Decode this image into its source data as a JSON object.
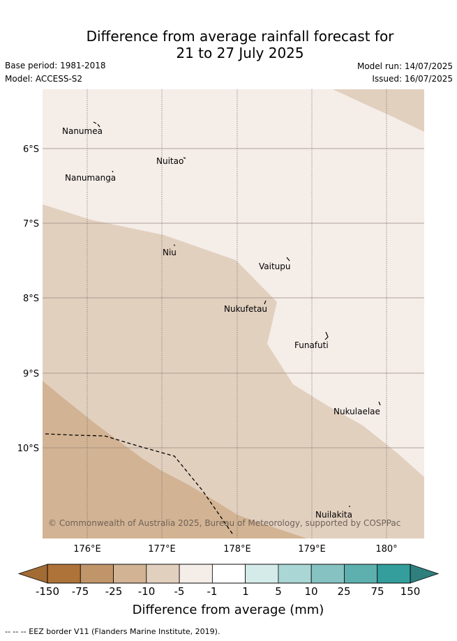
{
  "title_line1": "Difference from average rainfall forecast for",
  "title_line2": "21 to 27 July 2025",
  "base_period": "Base period: 1981-2018",
  "model": "Model: ACCESS-S2",
  "model_run": "Model run: 14/07/2025",
  "issued": "Issued: 16/07/2025",
  "map": {
    "lat_labels": [
      "6°S",
      "7°S",
      "8°S",
      "9°S",
      "10°S"
    ],
    "lon_labels": [
      "176°E",
      "177°E",
      "178°E",
      "179°E",
      "180°"
    ],
    "lon_range": [
      175.4,
      180.5
    ],
    "lat_range": [
      -11.2,
      -5.2
    ],
    "islands": [
      {
        "name": "Nanumea",
        "lon": 176.13,
        "lat": -5.68
      },
      {
        "name": "Nuitao",
        "lon": 177.3,
        "lat": -6.12
      },
      {
        "name": "Nanumanga",
        "lon": 176.33,
        "lat": -6.3
      },
      {
        "name": "Niu",
        "lon": 177.16,
        "lat": -7.3
      },
      {
        "name": "Vaitupu",
        "lon": 178.68,
        "lat": -7.48
      },
      {
        "name": "Nukufetau",
        "lon": 178.38,
        "lat": -8.03
      },
      {
        "name": "Funafuti",
        "lon": 179.2,
        "lat": -8.52
      },
      {
        "name": "Nukulaelae",
        "lon": 179.85,
        "lat": -9.38
      },
      {
        "name": "Nuilakita",
        "lon": 179.5,
        "lat": -10.78
      }
    ],
    "copyright": "© Commonwealth of Australia 2025, Bureau of Meteorology, supported by COSPPac"
  },
  "colorbar": {
    "ticks": [
      "-150",
      "-75",
      "-25",
      "-10",
      "-5",
      "-1",
      "1",
      "5",
      "10",
      "25",
      "75",
      "150"
    ],
    "colors": [
      "#ad7339",
      "#c1956a",
      "#d2b393",
      "#e2d0bf",
      "#f5ede8",
      "#ffffff",
      "#d5ebea",
      "#aad6d5",
      "#86c2c1",
      "#5eb0ae",
      "#339e9b"
    ],
    "under_color": "#a26b34",
    "over_color": "#2e7f7d",
    "label": "Difference from average (mm)"
  },
  "footer": "--  --  -- EEZ border V11 (Flanders Marine Institute, 2019)."
}
